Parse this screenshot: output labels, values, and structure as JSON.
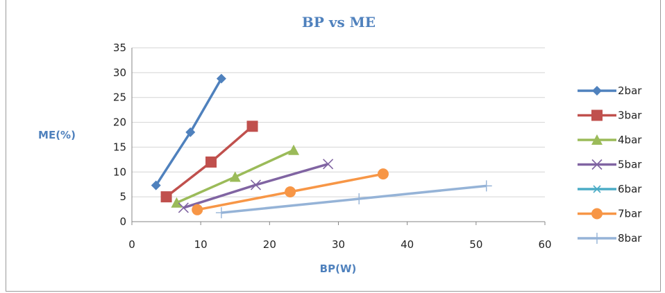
{
  "chart_data": {
    "type": "scatter",
    "title": "BP vs ME",
    "xlabel": "BP(W)",
    "ylabel": "ME(%)",
    "xlim": [
      0,
      60
    ],
    "ylim": [
      0,
      35
    ],
    "xticks": [
      "0",
      "10",
      "20",
      "30",
      "40",
      "50",
      "60"
    ],
    "yticks": [
      "0",
      "5",
      "10",
      "15",
      "20",
      "25",
      "30",
      "35"
    ],
    "grid": true,
    "legend_position": "right",
    "series": [
      {
        "name": "2bar",
        "color": "#4f81bd",
        "marker": "diamond",
        "x": [
          3.5,
          8.5,
          13
        ],
        "y": [
          7.3,
          18,
          28.8
        ]
      },
      {
        "name": "3bar",
        "color": "#c0504d",
        "marker": "square",
        "x": [
          5,
          11.5,
          17.5
        ],
        "y": [
          5,
          12,
          19.2
        ]
      },
      {
        "name": "4bar",
        "color": "#9bbb59",
        "marker": "triangle",
        "x": [
          6.5,
          15,
          23.5
        ],
        "y": [
          3.8,
          9,
          14.4
        ]
      },
      {
        "name": "5bar",
        "color": "#8064a2",
        "marker": "x",
        "x": [
          7.5,
          18,
          28.5
        ],
        "y": [
          2.8,
          7.4,
          11.6
        ]
      },
      {
        "name": "6bar",
        "color": "#4bacc6",
        "marker": "star",
        "x": [],
        "y": []
      },
      {
        "name": "7bar",
        "color": "#f79646",
        "marker": "circle",
        "x": [
          9.5,
          23,
          36.5
        ],
        "y": [
          2.4,
          6,
          9.6
        ]
      },
      {
        "name": "8bar",
        "color": "#95b3d7",
        "marker": "plus",
        "x": [
          13,
          33,
          51.5
        ],
        "y": [
          1.8,
          4.6,
          7.2
        ]
      }
    ]
  }
}
